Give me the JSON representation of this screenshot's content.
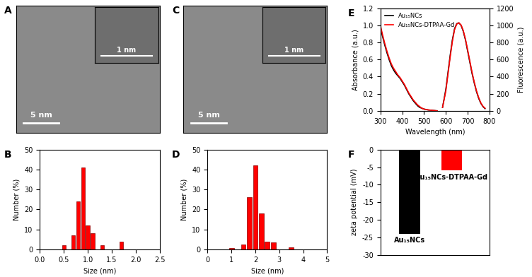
{
  "chart_data": [
    {
      "type": "image",
      "title": "A",
      "annotations": [
        "5 nm",
        "1 nm"
      ]
    },
    {
      "type": "histogram",
      "title": "B",
      "x_label": "Size (nm)",
      "y_label": "Number (%)",
      "bins": [
        0.45,
        0.55,
        0.65,
        0.75,
        0.85,
        0.95,
        1.05,
        1.15,
        1.25,
        1.35,
        1.45,
        1.55,
        1.65,
        1.75
      ],
      "values": [
        2,
        0,
        7,
        24,
        41,
        12,
        8,
        0,
        2,
        0,
        0,
        0,
        4
      ],
      "color": "#ff0000",
      "xlim": [
        0,
        2.5
      ],
      "xticks": [
        {
          "value": 0,
          "label": "0.0"
        },
        0.5,
        {
          "value": 1,
          "label": "1.0"
        },
        1.5,
        {
          "value": 2,
          "label": "2.0"
        },
        2.5
      ],
      "ylim": [
        0,
        50
      ],
      "yticks": [
        0,
        10,
        20,
        30,
        40,
        50
      ]
    },
    {
      "type": "image",
      "title": "C",
      "annotations": [
        "5 nm",
        "1 nm"
      ]
    },
    {
      "type": "histogram",
      "title": "D",
      "x_label": "Size (nm)",
      "y_label": "Number (%)",
      "bins": [
        0.875,
        1.125,
        1.375,
        1.625,
        1.875,
        2.125,
        2.375,
        2.625,
        2.875,
        3.125,
        3.375,
        3.625
      ],
      "values": [
        0.5,
        0,
        2.5,
        26,
        42,
        18,
        4,
        3.5,
        0,
        0,
        1
      ],
      "color": "#ff0000",
      "xlim": [
        0,
        5
      ],
      "xticks": [
        0,
        1,
        2,
        3,
        4,
        5
      ],
      "ylim": [
        0,
        50
      ],
      "yticks": [
        0,
        10,
        20,
        30,
        40,
        50
      ]
    },
    {
      "type": "line",
      "title": "E",
      "x_label": "Wavelength (nm)",
      "y_label": "Absorbance (a.u.)",
      "y2_label": "Fluorescence (a.u.)",
      "xlim": [
        300,
        800
      ],
      "xticks": [
        300,
        400,
        500,
        600,
        700,
        800
      ],
      "ylim": [
        0,
        1.2
      ],
      "yticks": [
        {
          "value": 0,
          "label": "0.0"
        },
        0.2,
        0.4,
        0.6,
        0.8,
        {
          "value": 1,
          "label": "1.0"
        },
        1.2
      ],
      "y2lim": [
        0,
        1200
      ],
      "y2ticks": [
        0,
        200,
        400,
        600,
        800,
        1000,
        1200
      ],
      "legend": "upper left",
      "series": [
        {
          "name": "Au₁₅NCs",
          "color": "#000000",
          "x": [
            300,
            310,
            320,
            330,
            340,
            350,
            360,
            370,
            380,
            390,
            400,
            410,
            420,
            430,
            440,
            450,
            460,
            470,
            480,
            490,
            500,
            520,
            540,
            560
          ],
          "values": [
            0.98,
            0.87,
            0.77,
            0.68,
            0.6,
            0.53,
            0.48,
            0.44,
            0.41,
            0.38,
            0.34,
            0.3,
            0.25,
            0.2,
            0.16,
            0.12,
            0.09,
            0.06,
            0.04,
            0.03,
            0.02,
            0.01,
            0.005,
            0.0
          ]
        },
        {
          "name": "Au₁₅NCs-DTPAA-Gd",
          "color": "#ff0000",
          "x": [
            300,
            310,
            320,
            330,
            340,
            350,
            360,
            370,
            380,
            390,
            400,
            410,
            420,
            430,
            440,
            450,
            460,
            470,
            480,
            490,
            500,
            520,
            540,
            560
          ],
          "values": [
            1.0,
            0.89,
            0.79,
            0.7,
            0.62,
            0.55,
            0.5,
            0.46,
            0.42,
            0.39,
            0.35,
            0.31,
            0.26,
            0.21,
            0.17,
            0.13,
            0.1,
            0.07,
            0.05,
            0.03,
            0.02,
            0.01,
            0.005,
            0.0
          ]
        },
        {
          "name": "Au₁₅NCs",
          "color": "#000000",
          "axis": "y2",
          "x": [
            585,
            600,
            610,
            620,
            630,
            640,
            650,
            660,
            670,
            680,
            690,
            700,
            710,
            720,
            730,
            740,
            750,
            760,
            770,
            780
          ],
          "values": [
            40,
            250,
            450,
            650,
            830,
            960,
            1020,
            1030,
            1000,
            930,
            830,
            700,
            570,
            440,
            330,
            230,
            150,
            90,
            50,
            25
          ]
        },
        {
          "name": "Au₁₅NCs-DTPAA-Gd",
          "color": "#ff0000",
          "axis": "y2",
          "x": [
            585,
            600,
            610,
            620,
            630,
            640,
            650,
            660,
            670,
            680,
            690,
            700,
            710,
            720,
            730,
            740,
            750,
            760,
            770,
            780
          ],
          "values": [
            40,
            230,
            430,
            630,
            810,
            950,
            1015,
            1030,
            1005,
            940,
            840,
            715,
            585,
            455,
            340,
            240,
            160,
            95,
            55,
            30
          ]
        }
      ]
    },
    {
      "type": "bar",
      "title": "F",
      "y_label": "zeta potential (mV)",
      "categories": [
        "Au₁₅NCs",
        "Au₁₅NCs-DTPAA-Gd"
      ],
      "values": [
        -24,
        -6
      ],
      "colors": [
        "#000000",
        "#ff0000"
      ],
      "ylim": [
        -30,
        0
      ],
      "yticks": [
        -30,
        -25,
        -20,
        -15,
        -10,
        -5,
        0
      ],
      "tick_labels": "y"
    }
  ]
}
